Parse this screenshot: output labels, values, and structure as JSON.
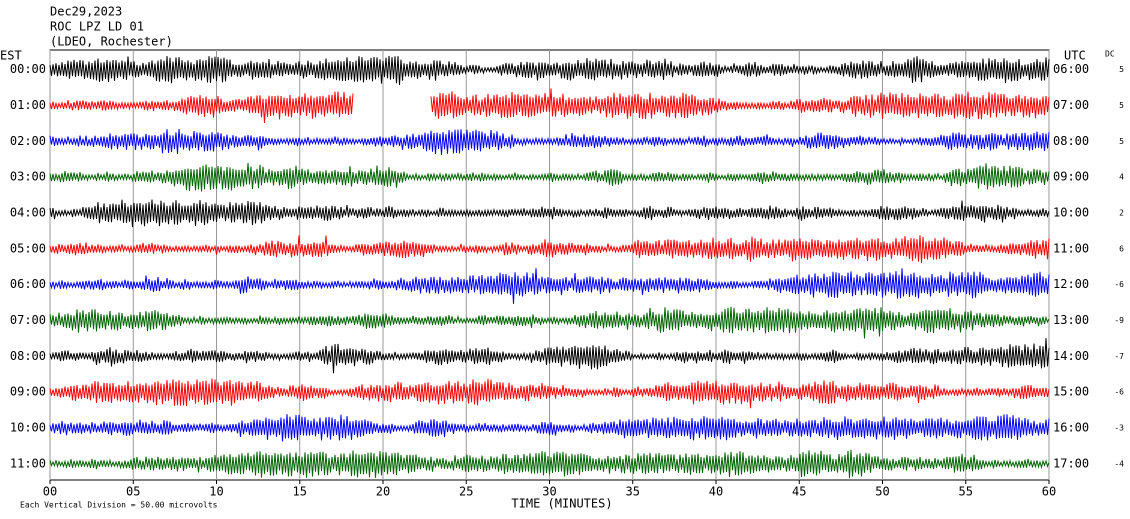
{
  "chart_data": {
    "type": "helicorder",
    "title_lines": [
      "Dec29,2023",
      "ROC LPZ LD 01",
      "(LDEO, Rochester)"
    ],
    "left_zone": "EST",
    "right_zone": "UTC",
    "dc_label": "DC",
    "xlabel": "TIME (MINUTES)",
    "scale_note": "Each Vertical Division =   50.00 microvolts",
    "xlim": [
      0,
      60
    ],
    "xticks": [
      {
        "value": 0,
        "label": "00"
      },
      {
        "value": 5,
        "label": "05"
      },
      10,
      15,
      20,
      25,
      30,
      35,
      40,
      45,
      50,
      55,
      60
    ],
    "grid": true,
    "rows": [
      {
        "est": "00:00",
        "utc": "06:00",
        "dc": 5,
        "color": "#000000"
      },
      {
        "est": "01:00",
        "utc": "07:00",
        "dc": 5,
        "color": "#ff0000",
        "gap": [
          18.2,
          22.8
        ]
      },
      {
        "est": "02:00",
        "utc": "08:00",
        "dc": 5,
        "color": "#0000ff"
      },
      {
        "est": "03:00",
        "utc": "09:00",
        "dc": 4,
        "color": "#006400"
      },
      {
        "est": "04:00",
        "utc": "10:00",
        "dc": 2,
        "color": "#000000"
      },
      {
        "est": "05:00",
        "utc": "11:00",
        "dc": 6,
        "color": "#ff0000"
      },
      {
        "est": "06:00",
        "utc": "12:00",
        "dc": -6,
        "color": "#0000ff"
      },
      {
        "est": "07:00",
        "utc": "13:00",
        "dc": -9,
        "color": "#006400"
      },
      {
        "est": "08:00",
        "utc": "14:00",
        "dc": -7,
        "color": "#000000"
      },
      {
        "est": "09:00",
        "utc": "15:00",
        "dc": -6,
        "color": "#ff0000"
      },
      {
        "est": "10:00",
        "utc": "16:00",
        "dc": -3,
        "color": "#0000ff"
      },
      {
        "est": "11:00",
        "utc": "17:00",
        "dc": -4,
        "color": "#006400"
      }
    ]
  }
}
